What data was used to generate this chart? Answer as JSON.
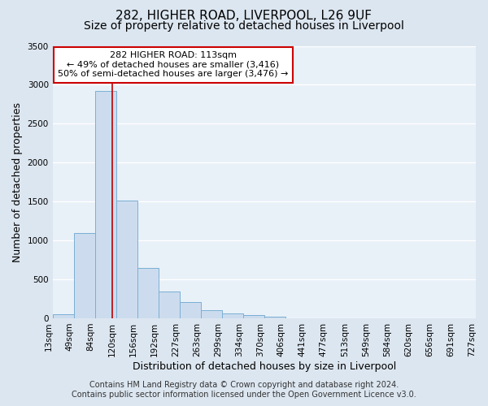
{
  "title": "282, HIGHER ROAD, LIVERPOOL, L26 9UF",
  "subtitle": "Size of property relative to detached houses in Liverpool",
  "bar_heights": [
    50,
    1100,
    2920,
    1510,
    650,
    340,
    210,
    100,
    60,
    40,
    20,
    0,
    0,
    0,
    0,
    0,
    0,
    0,
    0,
    0
  ],
  "n_bars": 20,
  "bin_labels": [
    "13sqm",
    "49sqm",
    "84sqm",
    "120sqm",
    "156sqm",
    "192sqm",
    "227sqm",
    "263sqm",
    "299sqm",
    "334sqm",
    "370sqm",
    "406sqm",
    "441sqm",
    "477sqm",
    "513sqm",
    "549sqm",
    "584sqm",
    "620sqm",
    "656sqm",
    "691sqm",
    "727sqm"
  ],
  "bar_color": "#ccdcee",
  "bar_edgecolor": "#7bafd4",
  "ylim": [
    0,
    3500
  ],
  "yticks": [
    0,
    500,
    1000,
    1500,
    2000,
    2500,
    3000,
    3500
  ],
  "ylabel": "Number of detached properties",
  "xlabel": "Distribution of detached houses by size in Liverpool",
  "vline_bar_index": 2.83,
  "vline_color": "#bb0000",
  "annotation_title": "282 HIGHER ROAD: 113sqm",
  "annotation_line1": "← 49% of detached houses are smaller (3,416)",
  "annotation_line2": "50% of semi-detached houses are larger (3,476) →",
  "annotation_box_color": "#ffffff",
  "annotation_box_edgecolor": "#cc0000",
  "footer_line1": "Contains HM Land Registry data © Crown copyright and database right 2024.",
  "footer_line2": "Contains public sector information licensed under the Open Government Licence v3.0.",
  "figure_background_color": "#dce6f0",
  "plot_background_color": "#e8f0f8",
  "grid_color": "#ffffff",
  "title_fontsize": 11,
  "subtitle_fontsize": 10,
  "axis_label_fontsize": 9,
  "tick_fontsize": 7.5,
  "footer_fontsize": 7
}
